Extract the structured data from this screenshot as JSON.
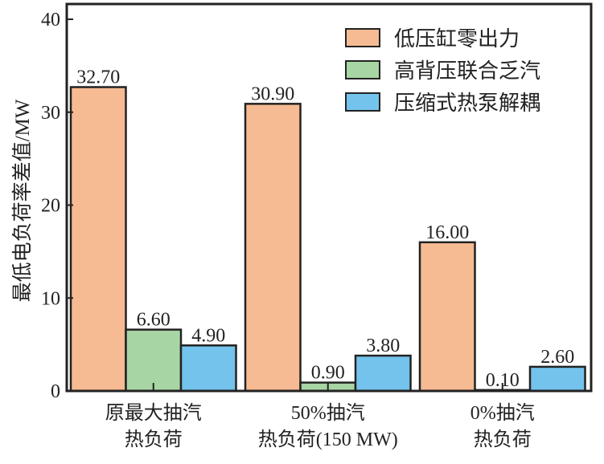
{
  "chart_data": {
    "type": "bar",
    "title": "",
    "xlabel": "",
    "ylabel": "最低电负荷率差值/MW",
    "ylim": [
      0,
      40
    ],
    "yticks": [
      "0",
      "10",
      "20",
      "30",
      "40"
    ],
    "categories": [
      [
        "原最大抽汽",
        "热负荷"
      ],
      [
        "50%抽汽",
        "热负荷(150 MW)"
      ],
      [
        "0%抽汽",
        "热负荷"
      ]
    ],
    "series": [
      {
        "name": "低压缸零出力",
        "color": "#f6bb92",
        "values": [
          32.7,
          30.9,
          16.0
        ],
        "labels": [
          "32.70",
          "30.90",
          "16.00"
        ]
      },
      {
        "name": "高背压联合乏汽",
        "color": "#a8d5a4",
        "values": [
          6.6,
          0.9,
          0.1
        ],
        "labels": [
          "6.60",
          "0.90",
          "0.10"
        ]
      },
      {
        "name": "压缩式热泵解耦",
        "color": "#74c3ec",
        "values": [
          4.9,
          3.8,
          2.6
        ],
        "labels": [
          "4.90",
          "3.80",
          "2.60"
        ]
      }
    ],
    "legend_position": "top-right",
    "grid": false
  }
}
